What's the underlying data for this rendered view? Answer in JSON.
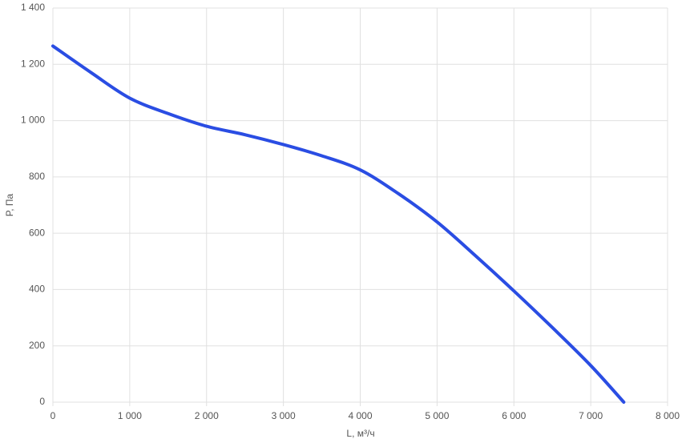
{
  "chart_data": {
    "type": "line",
    "x_label": "L, м³/ч",
    "y_label": "P, Па",
    "x": [
      0,
      500,
      1000,
      1500,
      2000,
      2500,
      3000,
      3500,
      4000,
      4500,
      5000,
      5500,
      6000,
      6500,
      7000,
      7430
    ],
    "series": [
      {
        "name": "P",
        "color": "#2a4de3",
        "values": [
          1265,
          1170,
          1080,
          1025,
          980,
          950,
          915,
          875,
          825,
          740,
          640,
          520,
          395,
          265,
          130,
          0
        ]
      }
    ],
    "xlim": [
      0,
      8000
    ],
    "xticks": [
      0,
      {
        "value": 1000,
        "label": "1 000"
      },
      {
        "value": 2000,
        "label": "2 000"
      },
      {
        "value": 3000,
        "label": "3 000"
      },
      {
        "value": 4000,
        "label": "4 000"
      },
      {
        "value": 5000,
        "label": "5 000"
      },
      {
        "value": 6000,
        "label": "6 000"
      },
      {
        "value": 7000,
        "label": "7 000"
      },
      {
        "value": 8000,
        "label": "8 000"
      }
    ],
    "ylim": [
      0,
      1400
    ],
    "yticks": [
      0,
      200,
      400,
      600,
      800,
      {
        "value": 1000,
        "label": "1 000"
      },
      {
        "value": 1200,
        "label": "1 200"
      },
      {
        "value": 1400,
        "label": "1 400"
      }
    ],
    "grid": true
  }
}
